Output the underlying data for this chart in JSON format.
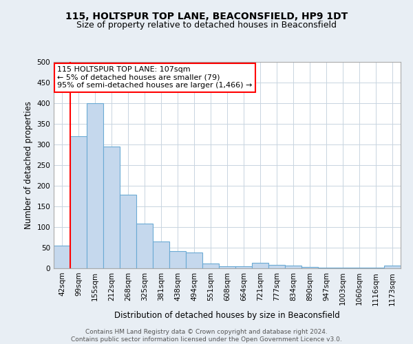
{
  "title": "115, HOLTSPUR TOP LANE, BEACONSFIELD, HP9 1DT",
  "subtitle": "Size of property relative to detached houses in Beaconsfield",
  "xlabel": "Distribution of detached houses by size in Beaconsfield",
  "ylabel": "Number of detached properties",
  "categories": [
    "42sqm",
    "99sqm",
    "155sqm",
    "212sqm",
    "268sqm",
    "325sqm",
    "381sqm",
    "438sqm",
    "494sqm",
    "551sqm",
    "608sqm",
    "664sqm",
    "721sqm",
    "777sqm",
    "834sqm",
    "890sqm",
    "947sqm",
    "1003sqm",
    "1060sqm",
    "1116sqm",
    "1173sqm"
  ],
  "values": [
    55,
    320,
    400,
    295,
    178,
    108,
    65,
    42,
    38,
    12,
    5,
    5,
    14,
    9,
    6,
    4,
    2,
    2,
    1,
    1,
    6
  ],
  "bar_color": "#c5d8ed",
  "bar_edge_color": "#6aaad4",
  "vline_color": "red",
  "annotation_text": "115 HOLTSPUR TOP LANE: 107sqm\n← 5% of detached houses are smaller (79)\n95% of semi-detached houses are larger (1,466) →",
  "annotation_box_color": "white",
  "annotation_box_edge": "red",
  "ylim": [
    0,
    500
  ],
  "yticks": [
    0,
    50,
    100,
    150,
    200,
    250,
    300,
    350,
    400,
    450,
    500
  ],
  "footer_text": "Contains HM Land Registry data © Crown copyright and database right 2024.\nContains public sector information licensed under the Open Government Licence v3.0.",
  "background_color": "#e8eef4",
  "plot_background": "white",
  "grid_color": "#c8d4e0",
  "title_fontsize": 10,
  "subtitle_fontsize": 9,
  "axis_label_fontsize": 8.5,
  "tick_fontsize": 7.5,
  "annotation_fontsize": 8,
  "footer_fontsize": 6.5
}
